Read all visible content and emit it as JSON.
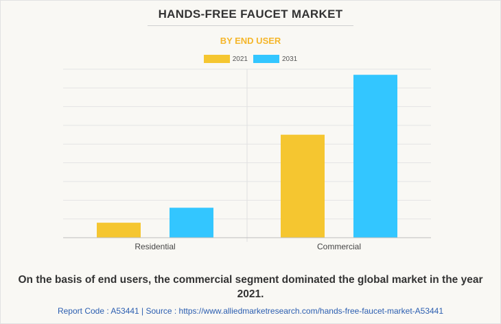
{
  "chart_data": {
    "type": "bar",
    "title": "HANDS-FREE FAUCET MARKET",
    "subtitle": "BY END USER",
    "categories": [
      "Residential",
      "Commercial"
    ],
    "series": [
      {
        "name": "2021",
        "values": [
          0.8,
          5.5
        ],
        "color": "#f5c630"
      },
      {
        "name": "2031",
        "values": [
          1.6,
          8.7
        ],
        "color": "#33c6ff"
      }
    ],
    "ylim": [
      0,
      9
    ],
    "grid": true,
    "legend_position": "top-center"
  },
  "caption": "On the basis of end users, the commercial segment dominated the global market in the year 2021.",
  "footer": "Report Code : A53441  |  Source : https://www.alliedmarketresearch.com/hands-free-faucet-market-A53441"
}
